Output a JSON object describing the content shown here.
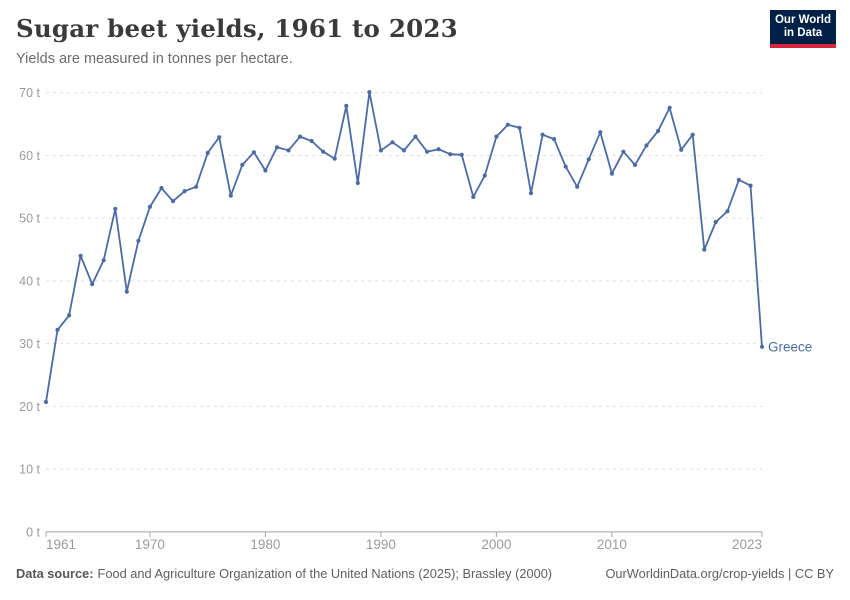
{
  "header": {
    "title": "Sugar beet yields, 1961 to 2023",
    "subtitle": "Yields are measured in tonnes per hectare."
  },
  "logo": {
    "line1": "Our World",
    "line2": "in Data"
  },
  "chart_data": {
    "type": "line",
    "title": "Sugar beet yields, 1961 to 2023",
    "unit": "tonnes per hectare",
    "entity_label": "Greece",
    "x": [
      1961,
      1962,
      1963,
      1964,
      1965,
      1966,
      1967,
      1968,
      1969,
      1970,
      1971,
      1972,
      1973,
      1974,
      1975,
      1976,
      1977,
      1978,
      1979,
      1980,
      1981,
      1982,
      1983,
      1984,
      1985,
      1986,
      1987,
      1988,
      1989,
      1990,
      1991,
      1992,
      1993,
      1994,
      1995,
      1996,
      1997,
      1998,
      1999,
      2000,
      2001,
      2002,
      2003,
      2004,
      2005,
      2006,
      2007,
      2008,
      2009,
      2010,
      2011,
      2012,
      2013,
      2014,
      2015,
      2016,
      2017,
      2018,
      2019,
      2020,
      2021,
      2022,
      2023
    ],
    "series": [
      {
        "name": "Greece",
        "values": [
          20.7,
          32.2,
          34.5,
          44.0,
          39.5,
          43.3,
          51.5,
          38.3,
          46.4,
          51.8,
          54.8,
          52.7,
          54.3,
          55.0,
          60.4,
          62.9,
          53.6,
          58.5,
          60.5,
          57.6,
          61.3,
          60.8,
          63.0,
          62.3,
          60.6,
          59.5,
          67.9,
          55.6,
          70.1,
          60.8,
          62.1,
          60.8,
          63.0,
          60.6,
          61.0,
          60.2,
          60.1,
          53.4,
          56.8,
          63.0,
          64.9,
          64.4,
          54.0,
          63.3,
          62.6,
          58.2,
          55.0,
          59.4,
          63.7,
          57.1,
          60.6,
          58.5,
          61.6,
          63.9,
          67.6,
          60.9,
          63.3,
          45.0,
          49.4,
          51.1,
          56.1,
          55.2,
          29.5
        ]
      }
    ],
    "ylim": [
      0,
      70
    ],
    "yticks": [
      0,
      10,
      20,
      30,
      40,
      50,
      60,
      70
    ],
    "ytick_suffix": " t",
    "xticks": [
      1961,
      1970,
      1980,
      1990,
      2000,
      2010,
      2023
    ],
    "grid": "horizontal-dashed",
    "legend_position": "end-of-line-label"
  },
  "colors": {
    "line": "#4c6ba5",
    "grid": "#dddddd",
    "axis": "#a3a3a3",
    "tick_label": "#9a9a9a",
    "entity_label": "#4c6ba5"
  },
  "footer": {
    "source_label": "Data source:",
    "source_text": "Food and Agriculture Organization of the United Nations (2025); Brassley (2000)",
    "link_text": "OurWorldinData.org/crop-yields | CC BY"
  }
}
